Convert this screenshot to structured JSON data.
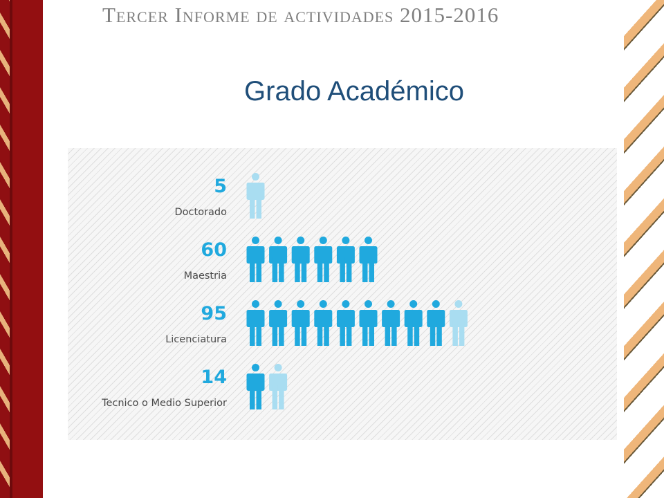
{
  "header": {
    "title": "Tercer Informe de actividades 2015-2016"
  },
  "slide": {
    "title": "Grado Académico"
  },
  "colors": {
    "icon": "#20a9de",
    "icon_partial": "#a9ddf1",
    "number": "#20a9de",
    "accent_red": "#930f11",
    "title": "#1f4e79"
  },
  "chart_data": {
    "type": "bar",
    "style": "pictogram",
    "icon": "person-icon",
    "categories": [
      "Doctorado",
      "Maestria",
      "Licenciatura",
      "Tecnico o Medio Superior"
    ],
    "values": [
      5,
      60,
      95,
      14
    ],
    "value_labels": [
      "5",
      "60",
      "95",
      "14"
    ],
    "units_per_icon": 10
  }
}
